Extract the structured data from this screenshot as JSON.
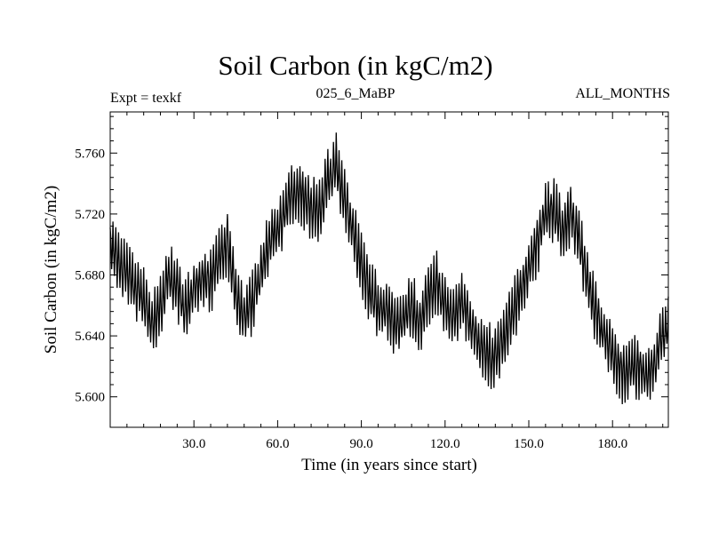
{
  "chart_data": {
    "type": "line",
    "title": "Soil Carbon (in kgC/m2)",
    "subtitle_left": "Expt = texkf",
    "subtitle_center": "025_6_MaBP",
    "subtitle_right": "ALL_MONTHS",
    "xlabel": "Time (in years since start)",
    "ylabel": "Soil Carbon (in kgC/m2)",
    "xlim": [
      0,
      200
    ],
    "ylim": [
      5.58,
      5.787
    ],
    "x_ticks": [
      30,
      60,
      90,
      120,
      150,
      180
    ],
    "x_tick_labels": [
      "30.0",
      "60.0",
      "90.0",
      "120.0",
      "150.0",
      "180.0"
    ],
    "y_ticks": [
      5.6,
      5.64,
      5.68,
      5.72,
      5.76
    ],
    "y_tick_labels": [
      "5.600",
      "5.640",
      "5.680",
      "5.720",
      "5.760"
    ],
    "series": [
      {
        "name": "Soil Carbon",
        "x": [
          0,
          3,
          6,
          9,
          12,
          15,
          18,
          21,
          24,
          27,
          30,
          33,
          36,
          39,
          42,
          45,
          48,
          51,
          54,
          57,
          60,
          63,
          66,
          69,
          72,
          75,
          78,
          81,
          84,
          87,
          90,
          93,
          96,
          99,
          102,
          105,
          108,
          111,
          114,
          117,
          120,
          123,
          126,
          129,
          132,
          135,
          138,
          141,
          144,
          147,
          150,
          153,
          156,
          159,
          162,
          165,
          168,
          171,
          174,
          177,
          180,
          183,
          186,
          189,
          192,
          195,
          198,
          200
        ],
        "y": [
          5.7,
          5.688,
          5.68,
          5.672,
          5.664,
          5.648,
          5.658,
          5.68,
          5.67,
          5.658,
          5.668,
          5.678,
          5.676,
          5.69,
          5.702,
          5.668,
          5.652,
          5.662,
          5.682,
          5.7,
          5.71,
          5.725,
          5.733,
          5.732,
          5.724,
          5.722,
          5.742,
          5.752,
          5.728,
          5.71,
          5.688,
          5.668,
          5.66,
          5.658,
          5.645,
          5.652,
          5.66,
          5.648,
          5.665,
          5.676,
          5.658,
          5.652,
          5.664,
          5.65,
          5.636,
          5.628,
          5.626,
          5.638,
          5.654,
          5.67,
          5.685,
          5.7,
          5.722,
          5.722,
          5.71,
          5.72,
          5.704,
          5.678,
          5.655,
          5.642,
          5.628,
          5.616,
          5.618,
          5.62,
          5.614,
          5.622,
          5.64,
          5.648
        ],
        "color": "#000000"
      }
    ]
  }
}
